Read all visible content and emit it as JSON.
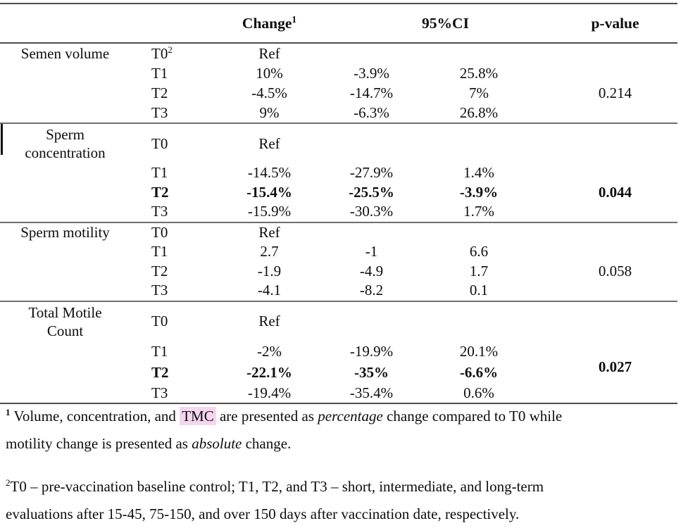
{
  "table": {
    "header": {
      "change": "Change",
      "change_sup": "1",
      "ci": "95%CI",
      "pvalue": "p-value"
    },
    "sections": [
      {
        "label1": "Semen volume",
        "label2": "",
        "rows": [
          {
            "time": "T0",
            "time_sup": "2",
            "change": "Ref"
          },
          {
            "time": "T1",
            "change": "10%",
            "lo": "-3.9%",
            "hi": "25.8%"
          },
          {
            "time": "T2",
            "change": "-4.5%",
            "lo": "-14.7%",
            "hi": "7%",
            "p": "0.214"
          },
          {
            "time": "T3",
            "change": "9%",
            "lo": "-6.3%",
            "hi": "26.8%"
          }
        ]
      },
      {
        "label1": "Sperm",
        "label2": "concentration",
        "rows": [
          {
            "time": "T0",
            "change": "Ref"
          },
          {
            "time": "T1",
            "change": "-14.5%",
            "lo": "-27.9%",
            "hi": "1.4%"
          },
          {
            "time": "T2",
            "change": "-15.4%",
            "lo": "-25.5%",
            "hi": "-3.9%",
            "p": "0.044"
          },
          {
            "time": "T3",
            "change": "-15.9%",
            "lo": "-30.3%",
            "hi": "1.7%"
          }
        ]
      },
      {
        "label1": "Sperm motility",
        "label2": "",
        "rows": [
          {
            "time": "T0",
            "change": "Ref"
          },
          {
            "time": "T1",
            "change": "2.7",
            "lo": "-1",
            "hi": "6.6"
          },
          {
            "time": "T2",
            "change": "-1.9",
            "lo": "-4.9",
            "hi": "1.7",
            "p": "0.058"
          },
          {
            "time": "T3",
            "change": "-4.1",
            "lo": "-8.2",
            "hi": "0.1"
          }
        ]
      },
      {
        "label1": "Total Motile",
        "label2": "Count",
        "rows": [
          {
            "time": "T0",
            "change": "Ref"
          },
          {
            "time": "T1",
            "change": "-2%",
            "lo": "-19.9%",
            "hi": "20.1%"
          },
          {
            "time": "T2",
            "change": "-22.1%",
            "lo": "-35%",
            "hi": "-6.6%",
            "p": "0.027"
          },
          {
            "time": "T3",
            "change": "-19.4%",
            "lo": "-35.4%",
            "hi": "0.6%"
          }
        ]
      }
    ]
  },
  "footnotes": {
    "fn1": {
      "sup": "1",
      "part1": " Volume, concentration, and ",
      "highlight": "TMC",
      "part2": " are presented as ",
      "italic1": "percentage",
      "part3": " change compared to T0 while",
      "line2_part1": "motility change is presented as ",
      "italic2": "absolute",
      "line2_part2": " change."
    },
    "fn2": {
      "sup": "2",
      "line1": "T0 – pre-vaccination baseline control; T1, T2, and T3 – short, intermediate, and long-term",
      "line2": "evaluations after 15-45, 75-150, and over 150 days after vaccination date, respectively."
    }
  },
  "colors": {
    "highlight": "#f4d7ef",
    "rule": "#4d4d4d",
    "text": "#0d0d0d"
  }
}
